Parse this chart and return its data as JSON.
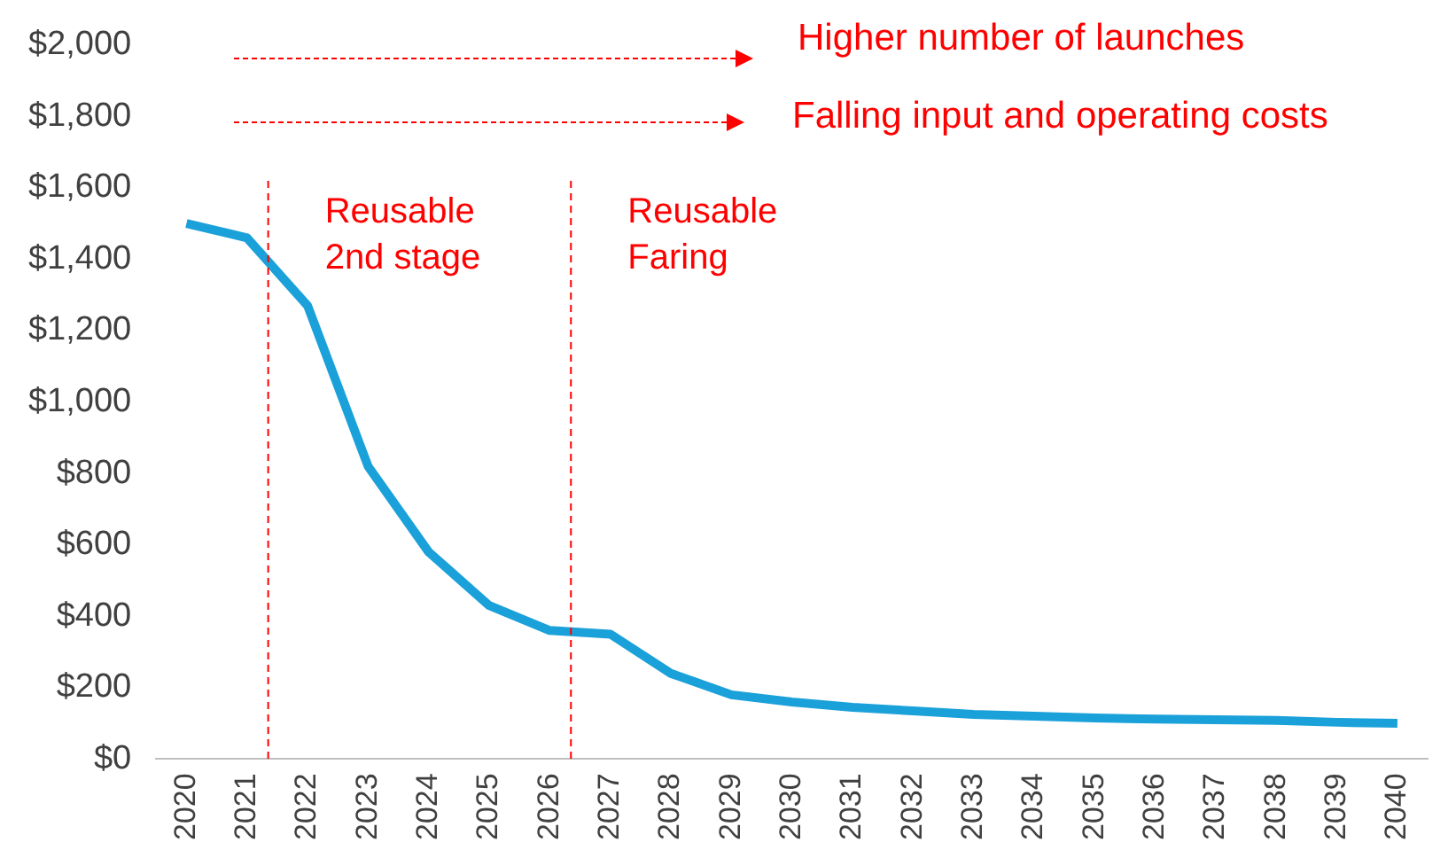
{
  "chart_data": {
    "type": "line",
    "x": [
      2020,
      2021,
      2022,
      2023,
      2024,
      2025,
      2026,
      2027,
      2028,
      2029,
      2030,
      2031,
      2032,
      2033,
      2034,
      2035,
      2036,
      2037,
      2038,
      2039,
      2040
    ],
    "values": [
      1500,
      1460,
      1270,
      820,
      580,
      430,
      360,
      350,
      240,
      180,
      160,
      145,
      135,
      125,
      120,
      115,
      112,
      110,
      108,
      103,
      100
    ],
    "color": "#1ba1d9",
    "xlim": [
      2019.5,
      2040.5
    ],
    "xticks": [
      2020,
      2021,
      2022,
      2023,
      2024,
      2025,
      2026,
      2027,
      2028,
      2029,
      2030,
      2031,
      2032,
      2033,
      2034,
      2035,
      2036,
      2037,
      2038,
      2039,
      2040
    ],
    "ylim": [
      0,
      2000
    ],
    "yticks": [
      {
        "value": 0,
        "label": "$0"
      },
      {
        "value": 200,
        "label": "$200"
      },
      {
        "value": 400,
        "label": "$400"
      },
      {
        "value": 600,
        "label": "$600"
      },
      {
        "value": 800,
        "label": "$800"
      },
      {
        "value": 1000,
        "label": "$1,000"
      },
      {
        "value": 1200,
        "label": "$1,200"
      },
      {
        "value": 1400,
        "label": "$1,400"
      },
      {
        "value": 1600,
        "label": "$1,600"
      },
      {
        "value": 1800,
        "label": "$1,800"
      },
      {
        "value": 2000,
        "label": "$2,000"
      }
    ],
    "ref_lines": [
      {
        "axis": "x",
        "value": 2021.35,
        "label": "Reusable\n2nd stage",
        "color": "#ff0000",
        "line_style": "dashed"
      },
      {
        "axis": "x",
        "value": 2026.35,
        "label": "Reusable\nFaring",
        "color": "#ff0000",
        "line_style": "dashed"
      }
    ],
    "annotations": [
      "Higher number of launches",
      "Falling input and operating costs"
    ],
    "grid": false,
    "legend": false,
    "marker": "none",
    "line_style": "solid"
  }
}
